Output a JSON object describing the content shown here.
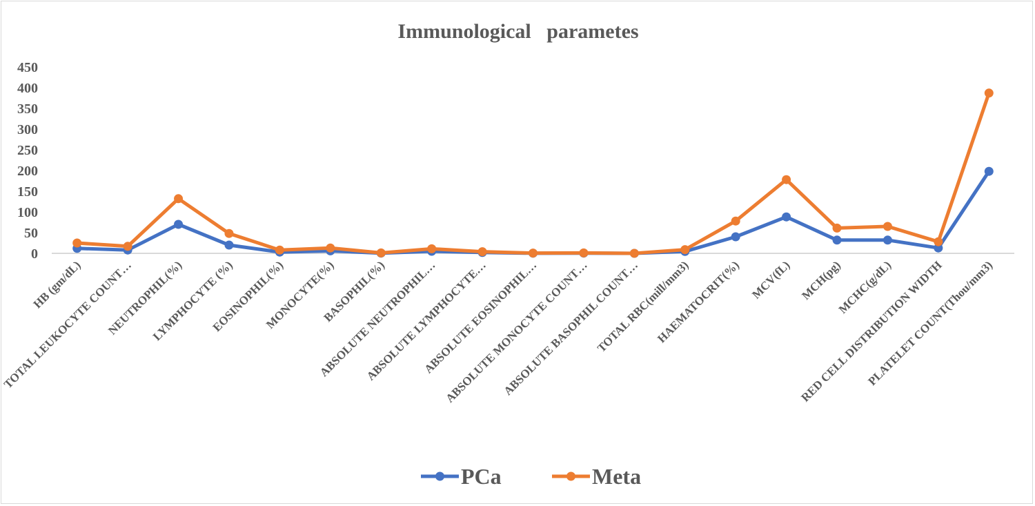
{
  "chart_data": {
    "type": "line",
    "title": "Immunological   parametes",
    "xlabel": "",
    "ylabel": "",
    "ylim": [
      0,
      450
    ],
    "yticks": [
      "0",
      "50",
      "100",
      "150",
      "200",
      "250",
      "300",
      "350",
      "400",
      "450"
    ],
    "grid": false,
    "legend_position": "bottom",
    "categories": [
      "HB (gm/dL)",
      "TOTAL LEUKOCYTE COUNT…",
      "NEUTROPHIL(%)",
      "LYMPHOCYTE (%)",
      "EOSINOPHIL(%)",
      "MONOCYTE(%)",
      "BASOPHIL(%)",
      "ABSOLUTE NEUTROPHIL…",
      "ABSOLUTE LYMPHOCYTE…",
      "ABSOLUTE EOSINOPHIL…",
      "ABSOLUTE MONOCYTE COUNT…",
      "ABSOLUTE BASOPHIL COUNT…",
      "TOTAL RBC(mill/mm3)",
      "HAEMATOCRIT(%)",
      "MCV(fL)",
      "MCH(pg)",
      "MCHC(g/dL)",
      "RED CELL DISTRIBUTION WIDTH",
      "PLATELET COUNT(Thou/mm3)"
    ],
    "series": [
      {
        "name": "PCa",
        "color": "#4472c4",
        "values": [
          12,
          8,
          70,
          20,
          3,
          6,
          0.5,
          5,
          2,
          0.3,
          0.5,
          0.05,
          4.5,
          40,
          88,
          32,
          32,
          13,
          198
        ]
      },
      {
        "name": "Meta",
        "color": "#ed7d31",
        "values": [
          25,
          17,
          132,
          48,
          8,
          13,
          1,
          11,
          4,
          0.6,
          1,
          0.1,
          9,
          78,
          178,
          61,
          65,
          28,
          387
        ]
      }
    ]
  }
}
